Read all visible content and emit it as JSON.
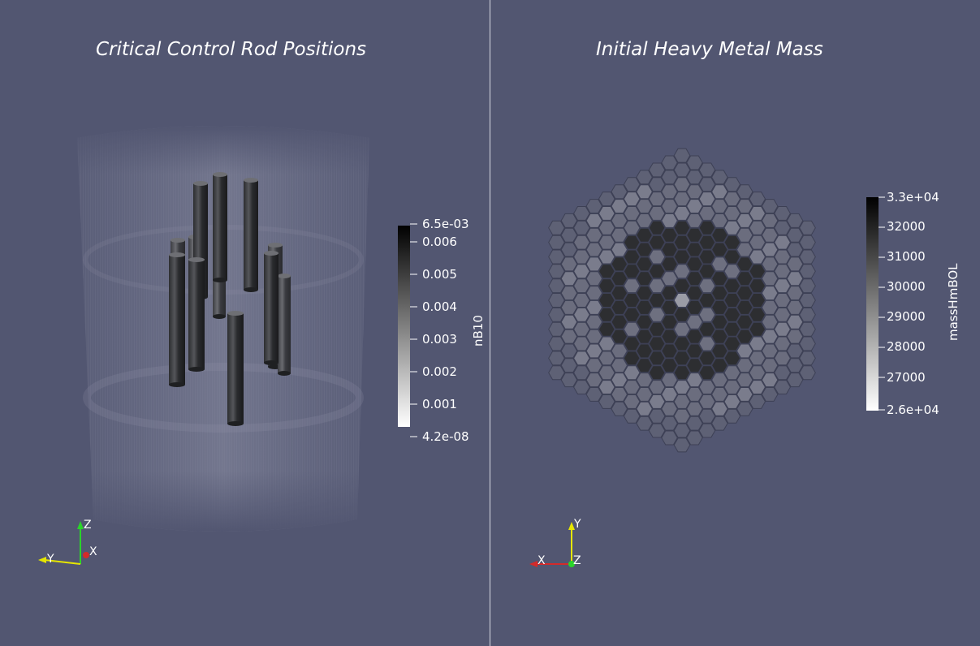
{
  "left_panel": {
    "title": "Critical Control Rod Positions",
    "colorbar": {
      "label": "nB10",
      "max_label": "6.5e-03",
      "min_label": "4.2e-08",
      "ticks": [
        "0.006",
        "0.005",
        "0.004",
        "0.003",
        "0.002",
        "0.001"
      ],
      "color_low": "#ffffff",
      "color_high": "#000000"
    },
    "axes": {
      "labels": [
        "Z",
        "Y",
        "X"
      ]
    }
  },
  "right_panel": {
    "title": "Initial Heavy Metal Mass",
    "colorbar": {
      "label": "massHmBOL",
      "max_label": "3.3e+04",
      "min_label": "2.6e+04",
      "ticks": [
        "32000",
        "31000",
        "30000",
        "29000",
        "28000",
        "27000"
      ],
      "color_low": "#ffffff",
      "color_high": "#000000"
    },
    "axes": {
      "labels": [
        "Y",
        "X",
        "Z"
      ]
    }
  },
  "colors": {
    "background": "#525671",
    "axis_x": "#d42a2a",
    "axis_y": "#e6e600",
    "axis_z": "#2ad42a"
  }
}
